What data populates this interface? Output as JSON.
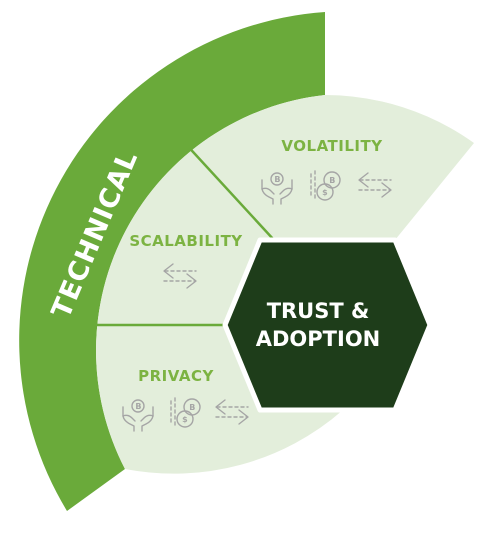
{
  "diagram": {
    "outer_label": "TECHNICAL",
    "center_label_line1": "TRUST &",
    "center_label_line2": "ADOPTION",
    "segments": [
      {
        "label": "VOLATILITY",
        "icons": [
          "hands-bitcoin-icon",
          "coins-bitcoin-icon",
          "exchange-arrows-icon"
        ]
      },
      {
        "label": "SCALABILITY",
        "icons": [
          "exchange-arrows-icon"
        ]
      },
      {
        "label": "PRIVACY",
        "icons": [
          "hands-bitcoin-icon",
          "coins-bitcoin-icon",
          "exchange-arrows-icon"
        ]
      }
    ],
    "colors": {
      "outer_arc": "#6aaa3a",
      "segment_fill": "#e3eedb",
      "segment_divider": "#6aaa3a",
      "center_hexagon": "#1e3d1a",
      "segment_label": "#7cb342",
      "icon": "#a5a5a5"
    }
  }
}
